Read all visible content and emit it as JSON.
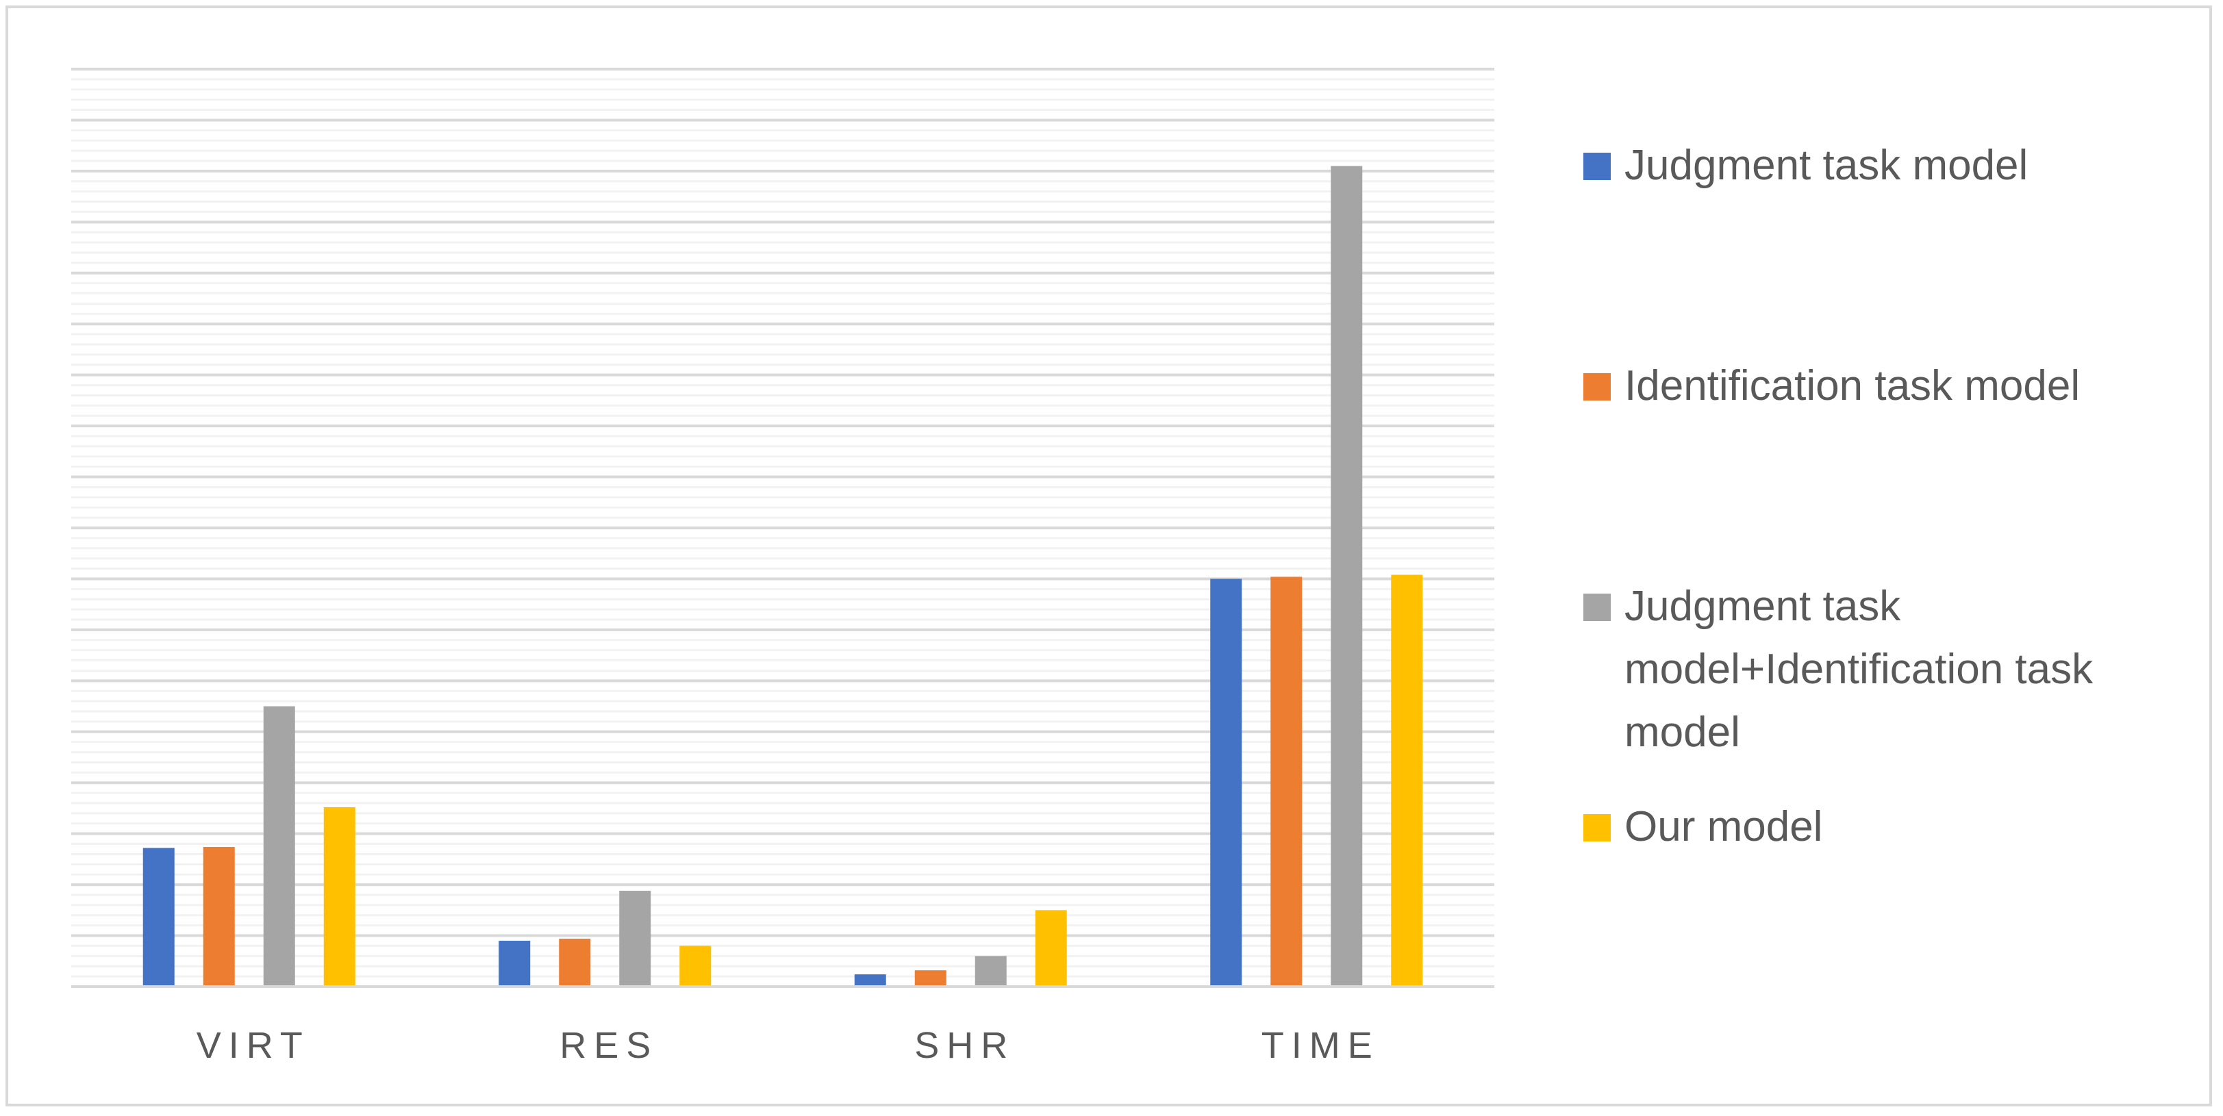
{
  "chart_data": {
    "type": "bar",
    "categories": [
      "VIRT",
      "RES",
      "SHR",
      "TIME"
    ],
    "series": [
      {
        "name": "Judgment task model",
        "color": "#4472C4",
        "values": [
          13.6,
          4.5,
          1.2,
          40.0
        ]
      },
      {
        "name": "Identification task model",
        "color": "#ED7D31",
        "values": [
          13.7,
          4.7,
          1.6,
          40.2
        ]
      },
      {
        "name": "Judgment task model+Identification task model",
        "color": "#A5A5A5",
        "values": [
          27.5,
          9.4,
          3.0,
          80.5
        ]
      },
      {
        "name": "Our model",
        "color": "#FFC000",
        "values": [
          17.6,
          4.0,
          7.5,
          40.4
        ]
      }
    ],
    "ylim": [
      0,
      90
    ],
    "grid": true,
    "legend_position": "right",
    "title": "",
    "xlabel": "",
    "ylabel": ""
  }
}
